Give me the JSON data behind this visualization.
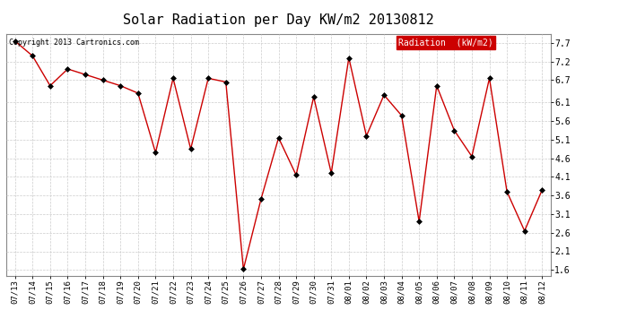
{
  "title": "Solar Radiation per Day KW/m2 20130812",
  "copyright": "Copyright 2013 Cartronics.com",
  "legend_label": "Radiation  (kW/m2)",
  "dates": [
    "07/13",
    "07/14",
    "07/15",
    "07/16",
    "07/17",
    "07/18",
    "07/19",
    "07/20",
    "07/21",
    "07/22",
    "07/23",
    "07/24",
    "07/25",
    "07/26",
    "07/27",
    "07/28",
    "07/29",
    "07/30",
    "07/31",
    "08/01",
    "08/02",
    "08/03",
    "08/04",
    "08/05",
    "08/06",
    "08/07",
    "08/08",
    "08/09",
    "08/10",
    "08/11",
    "08/12"
  ],
  "values": [
    7.75,
    7.35,
    6.55,
    7.0,
    6.85,
    6.7,
    6.55,
    6.35,
    4.75,
    6.75,
    4.85,
    6.75,
    6.65,
    1.62,
    3.5,
    5.15,
    4.15,
    6.25,
    4.2,
    7.3,
    5.2,
    6.3,
    5.75,
    2.9,
    6.55,
    5.35,
    4.65,
    6.75,
    3.7,
    2.65,
    3.75
  ],
  "line_color": "#cc0000",
  "marker_color": "#000000",
  "bg_color": "#ffffff",
  "plot_bg_color": "#ffffff",
  "grid_color": "#cccccc",
  "yticks": [
    1.6,
    2.1,
    2.6,
    3.1,
    3.6,
    4.1,
    4.6,
    5.1,
    5.6,
    6.1,
    6.7,
    7.2,
    7.7
  ],
  "ylim": [
    1.45,
    7.95
  ],
  "title_fontsize": 11,
  "legend_bg": "#cc0000",
  "legend_text_color": "#ffffff"
}
